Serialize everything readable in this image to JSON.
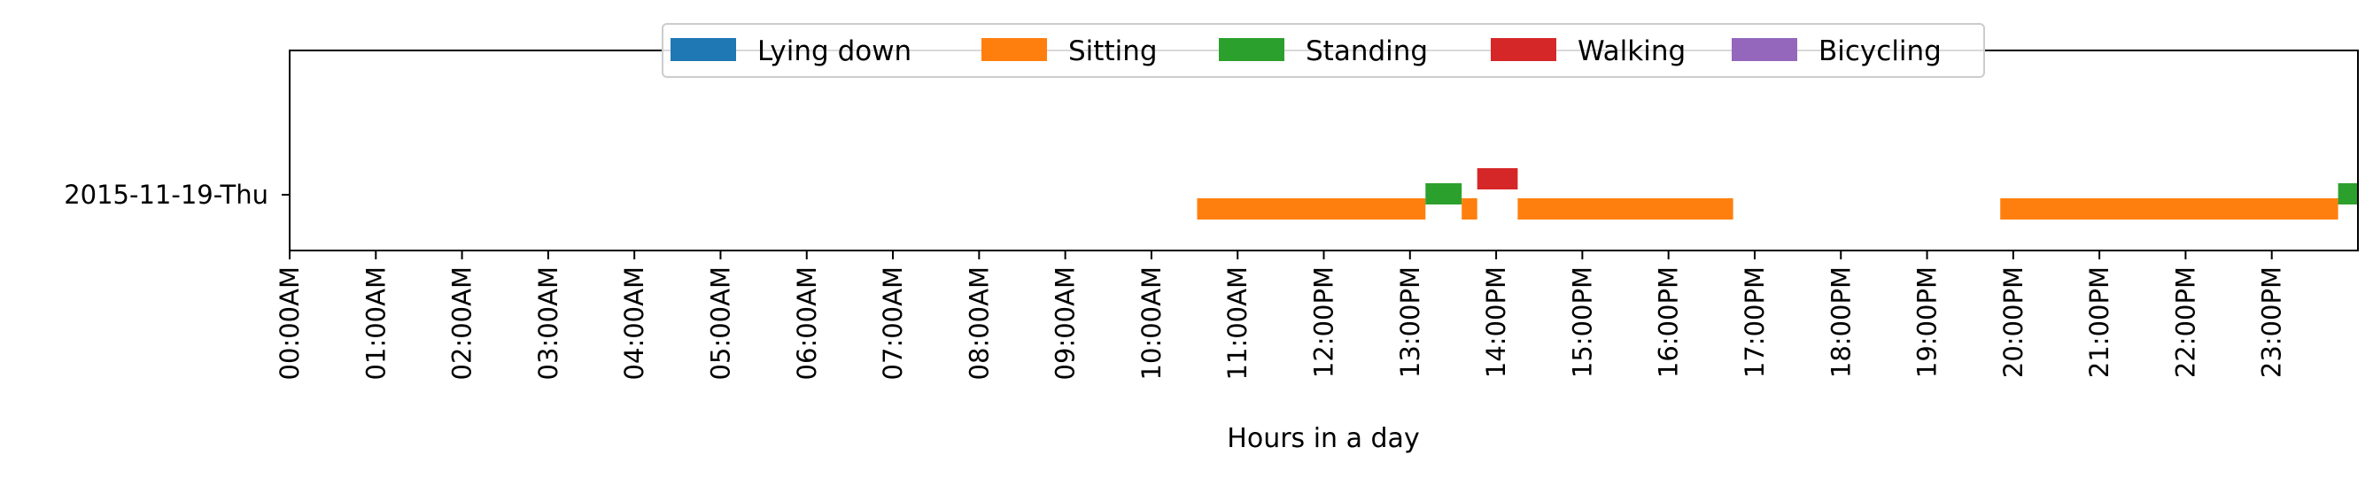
{
  "chart_data": {
    "type": "timeline",
    "title": "",
    "xlabel": "Hours in a day",
    "ylabel": "",
    "xlim": [
      0,
      24
    ],
    "x_ticks": [
      "00:00AM",
      "01:00AM",
      "02:00AM",
      "03:00AM",
      "04:00AM",
      "05:00AM",
      "06:00AM",
      "07:00AM",
      "08:00AM",
      "09:00AM",
      "10:00AM",
      "11:00AM",
      "12:00PM",
      "13:00PM",
      "14:00PM",
      "15:00PM",
      "16:00PM",
      "17:00PM",
      "18:00PM",
      "19:00PM",
      "20:00PM",
      "21:00PM",
      "22:00PM",
      "23:00PM"
    ],
    "rows": [
      "2015-11-19-Thu"
    ],
    "legend": [
      {
        "name": "Lying down",
        "color": "#1f77b4"
      },
      {
        "name": "Sitting",
        "color": "#ff7f0e"
      },
      {
        "name": "Standing",
        "color": "#2ca02c"
      },
      {
        "name": "Walking",
        "color": "#d62728"
      },
      {
        "name": "Bicycling",
        "color": "#9467bd"
      }
    ],
    "segments": [
      {
        "row": "2015-11-19-Thu",
        "activity": "Sitting",
        "start": 10.53,
        "end": 13.18
      },
      {
        "row": "2015-11-19-Thu",
        "activity": "Standing",
        "start": 13.18,
        "end": 13.6
      },
      {
        "row": "2015-11-19-Thu",
        "activity": "Sitting",
        "start": 13.6,
        "end": 13.78
      },
      {
        "row": "2015-11-19-Thu",
        "activity": "Walking",
        "start": 13.78,
        "end": 14.25
      },
      {
        "row": "2015-11-19-Thu",
        "activity": "Sitting",
        "start": 14.25,
        "end": 16.75
      },
      {
        "row": "2015-11-19-Thu",
        "activity": "Sitting",
        "start": 19.85,
        "end": 23.77
      },
      {
        "row": "2015-11-19-Thu",
        "activity": "Standing",
        "start": 23.77,
        "end": 24.0
      }
    ]
  }
}
